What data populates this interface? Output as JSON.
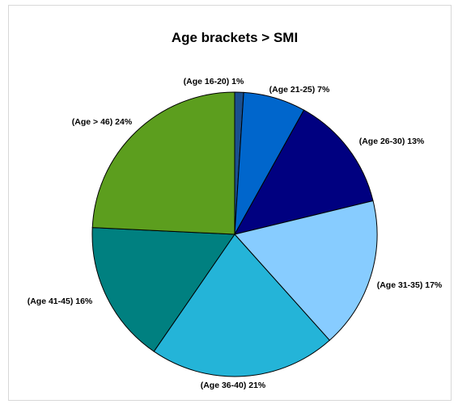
{
  "chart_data": {
    "type": "pie",
    "title": "Age brackets > SMI",
    "slices": [
      {
        "label": "(Age 16-20) 1%",
        "category": "Age 16-20",
        "value": 1,
        "color": "#1a4f8f"
      },
      {
        "label": "(Age 21-25) 7%",
        "category": "Age 21-25",
        "value": 7,
        "color": "#0066cc"
      },
      {
        "label": "(Age 26-30) 13%",
        "category": "Age 26-30",
        "value": 13,
        "color": "#000080"
      },
      {
        "label": "(Age 31-35) 17%",
        "category": "Age 31-35",
        "value": 17,
        "color": "#87ccff"
      },
      {
        "label": "(Age 36-40) 21%",
        "category": "Age 36-40",
        "value": 21,
        "color": "#24b4d8"
      },
      {
        "label": "(Age 41-45) 16%",
        "category": "Age 41-45",
        "value": 16,
        "color": "#008080"
      },
      {
        "label": "(Age > 46) 24%",
        "category": "Age > 46",
        "value": 24,
        "color": "#5c9e1e"
      }
    ],
    "legend": "none",
    "start_angle": "12 o'clock",
    "direction": "clockwise"
  }
}
